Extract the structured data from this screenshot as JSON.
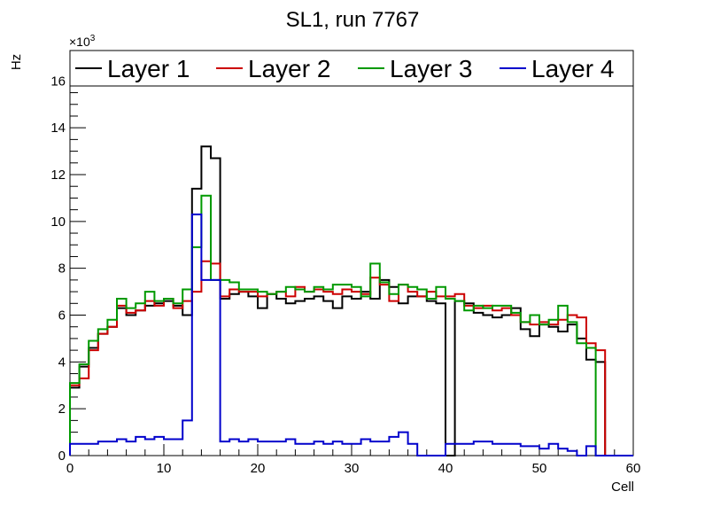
{
  "chart_data": {
    "type": "histogram-step",
    "title": "SL1, run 7767",
    "xlabel": "Cell",
    "ylabel": "Hz",
    "y_scale_label": "×10³",
    "y_scale_base": "×10",
    "y_scale_exp": "3",
    "xlim": [
      0,
      60
    ],
    "ylim": [
      0,
      17.3
    ],
    "x_ticks": [
      "0",
      "10",
      "20",
      "30",
      "40",
      "50",
      "60"
    ],
    "y_ticks": [
      "0",
      "2",
      "4",
      "6",
      "8",
      "10",
      "12",
      "14",
      "16"
    ],
    "bin_width": 1,
    "legend_position": "top",
    "series": [
      {
        "name": "Layer 1",
        "color": "#000000",
        "values": [
          2.9,
          3.8,
          4.6,
          5.2,
          5.5,
          6.3,
          6.0,
          6.2,
          6.4,
          6.5,
          6.6,
          6.4,
          6.0,
          11.4,
          13.2,
          12.7,
          6.7,
          6.9,
          7.0,
          6.8,
          6.3,
          6.9,
          6.7,
          6.5,
          6.6,
          6.7,
          6.8,
          6.6,
          6.3,
          6.8,
          6.7,
          7.0,
          6.7,
          7.5,
          7.2,
          6.5,
          6.8,
          6.8,
          6.6,
          6.5,
          0.0,
          6.6,
          6.5,
          6.1,
          6.0,
          5.9,
          6.0,
          6.3,
          5.4,
          5.1,
          5.6,
          5.5,
          5.3,
          5.6,
          5.0,
          4.1,
          4.0,
          0.0,
          0.0,
          0.0
        ]
      },
      {
        "name": "Layer 2",
        "color": "#cc0000",
        "values": [
          3.0,
          3.3,
          4.5,
          5.2,
          5.5,
          6.4,
          6.1,
          6.2,
          6.6,
          6.4,
          6.7,
          6.3,
          6.6,
          7.0,
          8.3,
          8.2,
          6.8,
          7.1,
          7.0,
          7.0,
          6.8,
          6.9,
          7.0,
          6.8,
          7.2,
          7.0,
          7.1,
          7.0,
          6.9,
          7.1,
          7.0,
          6.9,
          7.6,
          7.3,
          6.6,
          7.3,
          7.0,
          6.8,
          7.0,
          6.8,
          6.8,
          6.9,
          6.4,
          6.3,
          6.4,
          6.2,
          6.3,
          6.0,
          5.7,
          5.6,
          5.7,
          5.6,
          5.8,
          6.0,
          5.9,
          4.8,
          4.5,
          0.0,
          0.0,
          0.0
        ]
      },
      {
        "name": "Layer 3",
        "color": "#009900",
        "values": [
          3.1,
          3.9,
          4.9,
          5.4,
          5.8,
          6.7,
          6.3,
          6.5,
          7.0,
          6.6,
          6.7,
          6.5,
          7.1,
          8.9,
          11.1,
          7.5,
          7.5,
          7.4,
          7.1,
          7.1,
          7.0,
          6.9,
          7.0,
          7.2,
          7.1,
          7.0,
          7.2,
          7.1,
          7.3,
          7.3,
          7.2,
          6.8,
          8.2,
          7.4,
          6.9,
          7.3,
          7.2,
          7.1,
          6.7,
          7.2,
          6.7,
          6.6,
          6.2,
          6.4,
          6.3,
          6.4,
          6.4,
          6.1,
          5.7,
          6.0,
          5.6,
          5.8,
          6.4,
          5.7,
          4.8,
          4.6,
          0.0,
          0.0,
          0.0,
          0.0
        ]
      },
      {
        "name": "Layer 4",
        "color": "#0000cc",
        "values": [
          0.5,
          0.5,
          0.5,
          0.6,
          0.6,
          0.7,
          0.6,
          0.8,
          0.7,
          0.8,
          0.7,
          0.7,
          1.5,
          10.3,
          7.5,
          7.5,
          0.6,
          0.7,
          0.6,
          0.7,
          0.6,
          0.6,
          0.6,
          0.7,
          0.5,
          0.5,
          0.6,
          0.5,
          0.6,
          0.5,
          0.5,
          0.7,
          0.6,
          0.6,
          0.8,
          1.0,
          0.5,
          0.0,
          0.0,
          0.0,
          0.5,
          0.5,
          0.5,
          0.6,
          0.6,
          0.5,
          0.5,
          0.5,
          0.4,
          0.4,
          0.3,
          0.5,
          0.3,
          0.2,
          0.0,
          0.4,
          0.0,
          0.0,
          0.0,
          0.0
        ]
      }
    ]
  }
}
